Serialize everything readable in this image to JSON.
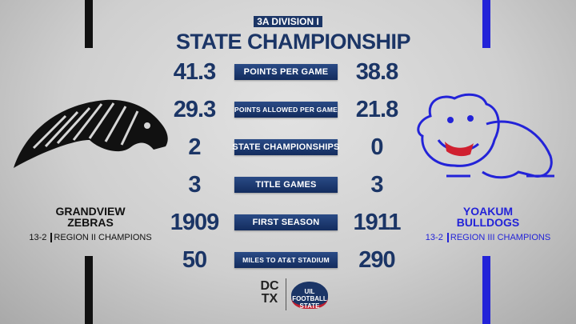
{
  "header": {
    "division": "3A DIVISION I",
    "title": "STATE CHAMPIONSHIP"
  },
  "colors": {
    "navy": "#1b3566",
    "left_team": "#111111",
    "right_team": "#2323d8"
  },
  "left_team": {
    "name_line1": "GRANDVIEW",
    "name_line2": "ZEBRAS",
    "record": "13-2",
    "region": "REGION II CHAMPIONS",
    "logo": "zebra-logo"
  },
  "right_team": {
    "name_line1": "YOAKUM",
    "name_line2": "BULLDOGS",
    "record": "13-2",
    "region": "REGION III CHAMPIONS",
    "logo": "bulldog-logo"
  },
  "stats": [
    {
      "label": "POINTS PER GAME",
      "left": "41.3",
      "right": "38.8"
    },
    {
      "label": "POINTS ALLOWED PER GAME",
      "left": "29.3",
      "right": "21.8"
    },
    {
      "label": "STATE CHAMPIONSHIPS",
      "left": "2",
      "right": "0"
    },
    {
      "label": "TITLE GAMES",
      "left": "3",
      "right": "3"
    },
    {
      "label": "FIRST SEASON",
      "left": "1909",
      "right": "1911"
    },
    {
      "label": "MILES TO AT&T STADIUM",
      "left": "50",
      "right": "290"
    }
  ],
  "footer": {
    "logo1": "DCTX",
    "logo2": "UIL FOOTBALL STATE"
  }
}
